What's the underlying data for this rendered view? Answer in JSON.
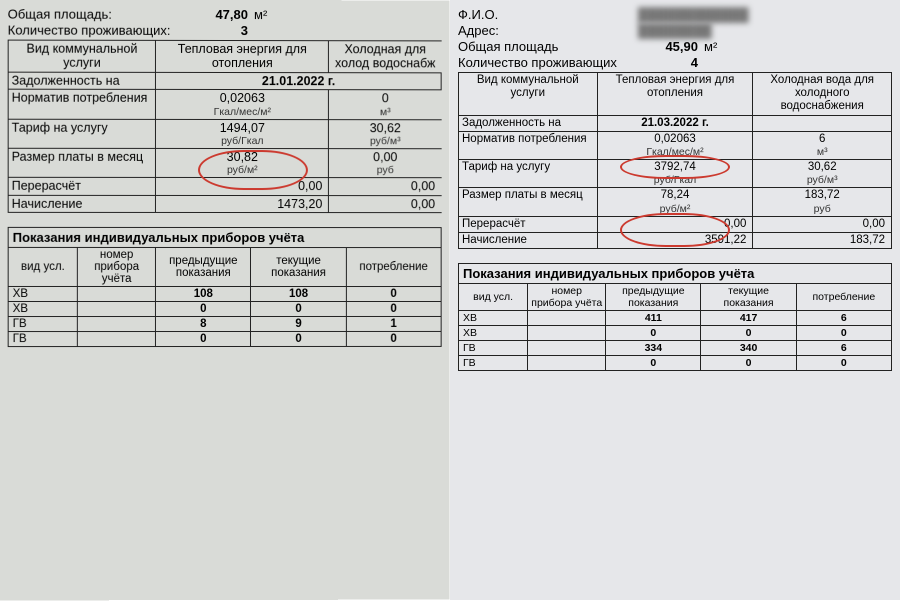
{
  "left": {
    "area_label": "Общая площадь:",
    "area_val": "47,80",
    "area_unit": "м²",
    "residents_label": "Количество проживающих:",
    "residents_val": "3",
    "hdr_service": "Вид\nкоммунальной\nуслуги",
    "hdr_heat": "Тепловая энергия\nдля\nотопления",
    "hdr_cold": "Холодная\nдля холод\nводоснабж",
    "r_debt_l": "Задолженность на",
    "r_debt_v": "21.01.2022 г.",
    "r_norm_l": "Норматив\nпотребления",
    "r_norm_v": "0,02063",
    "r_norm_u": "Гкал/мес/м²",
    "r_norm_cold": "0",
    "r_norm_cold_u": "м³",
    "r_tarif_l": "Тариф на\nуслугу",
    "r_tarif_v": "1494,07",
    "r_tarif_u": "руб/Гкал",
    "r_tarif_cold": "30,62",
    "r_tarif_cold_u": "руб/м³",
    "r_pay_l": "Размер платы\nв месяц",
    "r_pay_v": "30,82",
    "r_pay_u": "руб/м²",
    "r_pay_cold": "0,00",
    "r_pay_cold_u": "руб",
    "r_recalc_l": "Перерасчёт",
    "r_recalc_v": "0,00",
    "r_recalc_cold": "0,00",
    "r_charge_l": "Начисление",
    "r_charge_v": "1473,20",
    "r_charge_cold": "0,00",
    "meters_title": "Показания индивидуальных приборов учёта",
    "mh_service": "вид усл.",
    "mh_num": "номер\nприбора\nучёта",
    "mh_prev": "предыдущие\nпоказания",
    "mh_cur": "текущие\nпоказания",
    "mh_cons": "потребление",
    "mrows": [
      {
        "s": "ХВ",
        "n": "",
        "p": "108",
        "c": "108",
        "u": "0"
      },
      {
        "s": "ХВ",
        "n": "",
        "p": "0",
        "c": "0",
        "u": "0"
      },
      {
        "s": "ГВ",
        "n": "",
        "p": "8",
        "c": "9",
        "u": "1"
      },
      {
        "s": "ГВ",
        "n": "",
        "p": "0",
        "c": "0",
        "u": "0"
      }
    ]
  },
  "right": {
    "fio_label": "Ф.И.О.",
    "addr_label": "Адрес:",
    "area_label": "Общая площадь",
    "area_val": "45,90",
    "area_unit": "м²",
    "residents_label": "Количество проживающих",
    "residents_val": "4",
    "hdr_service": "Вид\nкоммунальной\nуслуги",
    "hdr_heat": "Тепловая энергия\nдля\nотопления",
    "hdr_cold": "Холодная вода\nдля холодного\nводоснабжения",
    "r_debt_l": "Задолженность на",
    "r_debt_v": "21.03.2022 г.",
    "r_norm_l": "Норматив\nпотребления",
    "r_norm_v": "0,02063",
    "r_norm_u": "Гкал/мес/м²",
    "r_norm_cold": "6",
    "r_norm_cold_u": "м³",
    "r_tarif_l": "Тариф на\nуслугу",
    "r_tarif_v": "3792,74",
    "r_tarif_u": "руб/Гкал",
    "r_tarif_cold": "30,62",
    "r_tarif_cold_u": "руб/м³",
    "r_pay_l": "Размер платы\nв месяц",
    "r_pay_v": "78,24",
    "r_pay_u": "руб/м²",
    "r_pay_cold": "183,72",
    "r_pay_cold_u": "руб",
    "r_recalc_l": "Перерасчёт",
    "r_recalc_v": "0,00",
    "r_recalc_cold": "0,00",
    "r_charge_l": "Начисление",
    "r_charge_v": "3591,22",
    "r_charge_cold": "183,72",
    "meters_title": "Показания индивидуальных приборов учёта",
    "mh_service": "вид усл.",
    "mh_num": "номер\nприбора\nучёта",
    "mh_prev": "предыдущие\nпоказания",
    "mh_cur": "текущие\nпоказания",
    "mh_cons": "потребление",
    "mrows": [
      {
        "s": "ХВ",
        "n": "",
        "p": "411",
        "c": "417",
        "u": "6"
      },
      {
        "s": "ХВ",
        "n": "",
        "p": "0",
        "c": "0",
        "u": "0"
      },
      {
        "s": "ГВ",
        "n": "",
        "p": "334",
        "c": "340",
        "u": "6"
      },
      {
        "s": "ГВ",
        "n": "",
        "p": "0",
        "c": "0",
        "u": "0"
      }
    ]
  }
}
